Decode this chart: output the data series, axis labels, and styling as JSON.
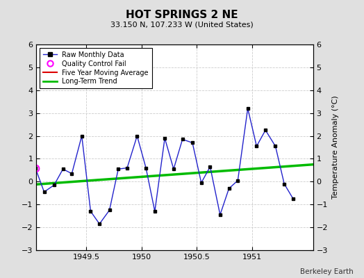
{
  "title": "HOT SPRINGS 2 NE",
  "subtitle": "33.150 N, 107.233 W (United States)",
  "ylabel": "Temperature Anomaly (°C)",
  "credit": "Berkeley Earth",
  "ylim": [
    -3,
    6
  ],
  "xlim": [
    1949.05,
    1951.55
  ],
  "background_color": "#e0e0e0",
  "plot_bg_color": "#ffffff",
  "raw_x": [
    1949.04,
    1949.12,
    1949.21,
    1949.29,
    1949.37,
    1949.46,
    1949.54,
    1949.62,
    1949.71,
    1949.79,
    1949.87,
    1949.96,
    1950.04,
    1950.12,
    1950.21,
    1950.29,
    1950.37,
    1950.46,
    1950.54,
    1950.62,
    1950.71,
    1950.79,
    1950.87,
    1950.96,
    1951.04,
    1951.12,
    1951.21,
    1951.29,
    1951.37
  ],
  "raw_y": [
    0.6,
    -0.45,
    -0.15,
    0.55,
    0.35,
    2.0,
    -1.3,
    -1.85,
    -1.25,
    0.55,
    0.6,
    2.0,
    0.6,
    -1.3,
    1.9,
    0.55,
    1.85,
    1.7,
    -0.05,
    0.65,
    -1.45,
    -0.3,
    0.05,
    3.2,
    1.55,
    2.25,
    1.55,
    -0.1,
    -0.75
  ],
  "qc_fail_x": [
    1949.04
  ],
  "qc_fail_y": [
    0.6
  ],
  "trend_x": [
    1949.05,
    1951.55
  ],
  "trend_y": [
    -0.12,
    0.75
  ],
  "grid_color": "#cccccc",
  "raw_line_color": "#2222cc",
  "raw_marker_color": "#000000",
  "trend_color": "#00bb00",
  "moving_avg_color": "#dd0000",
  "qc_color": "#ff00ff",
  "xticks": [
    1949.5,
    1950.0,
    1950.5,
    1951.0
  ],
  "xtick_labels": [
    "1949.5",
    "1950",
    "1950.5",
    "1951"
  ],
  "yticks": [
    -3,
    -2,
    -1,
    0,
    1,
    2,
    3,
    4,
    5,
    6
  ]
}
